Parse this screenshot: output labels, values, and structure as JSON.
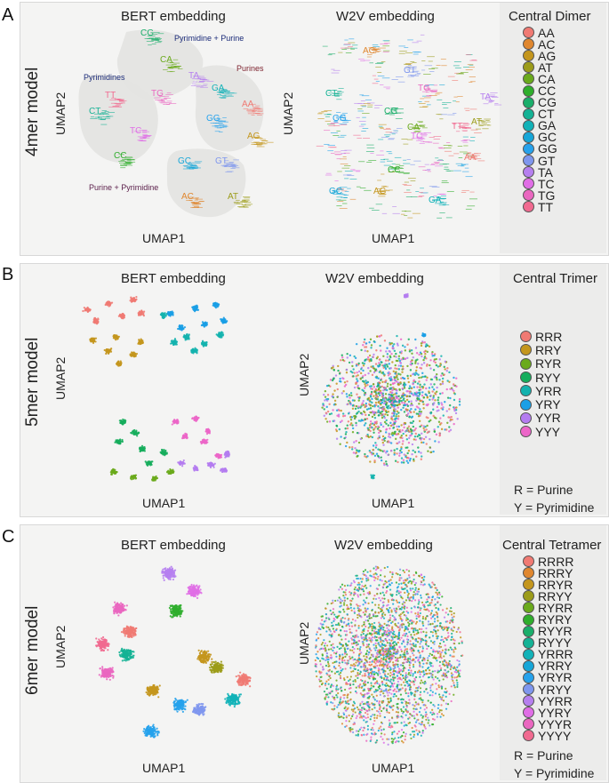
{
  "chart_data": [
    {
      "panel": "A",
      "model": "4mer model",
      "type": "scatter",
      "plots": [
        {
          "title": "BERT embedding",
          "xlabel": "UMAP1",
          "ylabel": "UMAP2",
          "groups": [
            "Pyrimidine + Purine",
            "Purines",
            "Pyrimidines",
            "Purine + Pyrimidine"
          ],
          "clusters": [
            "CG",
            "CA",
            "TA",
            "TT",
            "TG",
            "CT",
            "TC",
            "CC",
            "GA",
            "AA",
            "GG",
            "AG",
            "GC",
            "GT",
            "AC",
            "AT"
          ]
        },
        {
          "title": "W2V embedding",
          "xlabel": "UMAP1",
          "ylabel": "UMAP2",
          "clusters": [
            "AC",
            "GT",
            "CT",
            "TG",
            "TA",
            "GG",
            "CG",
            "AT",
            "CA",
            "TC",
            "TT",
            "AA",
            "CC",
            "GC",
            "AG",
            "GA"
          ]
        }
      ],
      "legend": {
        "title": "Central Dimer",
        "items": [
          "AA",
          "AC",
          "AG",
          "AT",
          "CA",
          "CC",
          "CG",
          "CT",
          "GA",
          "GC",
          "GG",
          "GT",
          "TA",
          "TC",
          "TG",
          "TT"
        ]
      }
    },
    {
      "panel": "B",
      "model": "5mer model",
      "type": "scatter",
      "plots": [
        {
          "title": "BERT embedding",
          "xlabel": "UMAP1",
          "ylabel": "UMAP2"
        },
        {
          "title": "W2V embedding",
          "xlabel": "UMAP1",
          "ylabel": "UMAP2"
        }
      ],
      "legend": {
        "title": "Central Trimer",
        "items": [
          "RRR",
          "RRY",
          "RYR",
          "RYY",
          "YRR",
          "YRY",
          "YYR",
          "YYY"
        ],
        "notes": [
          "R = Purine",
          "Y = Pyrimidine"
        ]
      }
    },
    {
      "panel": "C",
      "model": "6mer model",
      "type": "scatter",
      "plots": [
        {
          "title": "BERT embedding",
          "xlabel": "UMAP1",
          "ylabel": "UMAP2"
        },
        {
          "title": "W2V embedding",
          "xlabel": "UMAP1",
          "ylabel": "UMAP2"
        }
      ],
      "legend": {
        "title": "Central Tetramer",
        "items": [
          "RRRR",
          "RRRY",
          "RRYR",
          "RRYY",
          "RYRR",
          "RYRY",
          "RYYR",
          "RYYY",
          "YRRR",
          "YRRY",
          "YRYR",
          "YRYY",
          "YYRR",
          "YYRY",
          "YYYR",
          "YYYY"
        ],
        "notes": [
          "R = Purine",
          "Y = Pyrimidine"
        ]
      }
    }
  ],
  "colors16": [
    "#f07a73",
    "#e0872f",
    "#c4961d",
    "#9c9c1a",
    "#6aaa1c",
    "#2fae2c",
    "#1aae6a",
    "#14b295",
    "#12b2b8",
    "#16a6d8",
    "#26a2ec",
    "#7f97ee",
    "#b680ef",
    "#e06ee6",
    "#ea67c0",
    "#f16a90"
  ],
  "colors8": [
    "#f07a73",
    "#c4961d",
    "#6aaa1c",
    "#16ad5c",
    "#14b2ae",
    "#1a9fe6",
    "#b47cf0",
    "#ec66c8"
  ]
}
